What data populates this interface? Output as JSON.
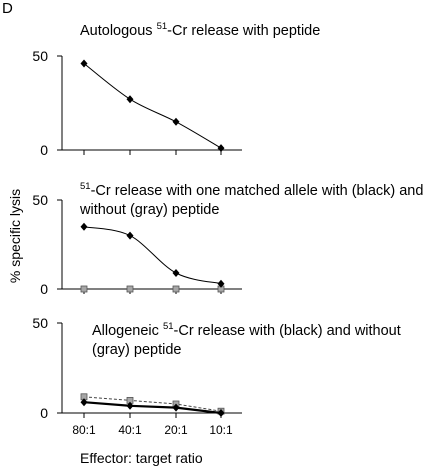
{
  "figure": {
    "panel_letter": "D",
    "ylabel": "% specific lysis",
    "xlabel": "Effector: target ratio"
  },
  "colors": {
    "black": "#000000",
    "gray": "#a6a6a6",
    "gray_stroke": "#555555"
  },
  "chart_data": [
    {
      "type": "line",
      "title_pre": "Autologous ",
      "title_sup": "51",
      "title_post": "-Cr release with peptide",
      "title_line2": "",
      "categories": [
        "80:1",
        "40:1",
        "20:1",
        "10:1"
      ],
      "show_xticks": false,
      "ylim": [
        0,
        50
      ],
      "yticks": [
        "0",
        "50"
      ],
      "series": [
        {
          "color": "black",
          "marker": "diamond",
          "style": "smooth",
          "values": [
            46,
            27,
            15,
            1
          ]
        }
      ]
    },
    {
      "type": "line",
      "title_pre": "",
      "title_sup": "51",
      "title_post": "-Cr release with one matched allele with (black) and",
      "title_line2": "without (gray) peptide",
      "categories": [
        "80:1",
        "40:1",
        "20:1",
        "10:1"
      ],
      "show_xticks": false,
      "ylim": [
        0,
        50
      ],
      "yticks": [
        "0",
        "50"
      ],
      "series": [
        {
          "color": "black",
          "marker": "diamond",
          "style": "smooth",
          "values": [
            35,
            30,
            9,
            3
          ]
        },
        {
          "color": "gray",
          "marker": "square",
          "style": "none",
          "values": [
            0,
            0,
            0,
            0
          ]
        }
      ]
    },
    {
      "type": "line",
      "title_pre": "Allogeneic ",
      "title_sup": "51",
      "title_post": "-Cr release with (black) and without",
      "title_line2": "(gray) peptide",
      "categories": [
        "80:1",
        "40:1",
        "20:1",
        "10:1"
      ],
      "show_xticks": true,
      "ylim": [
        0,
        50
      ],
      "yticks": [
        "0",
        "50"
      ],
      "series": [
        {
          "color": "black",
          "marker": "diamond",
          "style": "bold",
          "values": [
            6,
            4,
            3,
            0
          ]
        },
        {
          "color": "gray",
          "marker": "square",
          "style": "dashed",
          "values": [
            9,
            7,
            5,
            1
          ]
        }
      ]
    }
  ]
}
